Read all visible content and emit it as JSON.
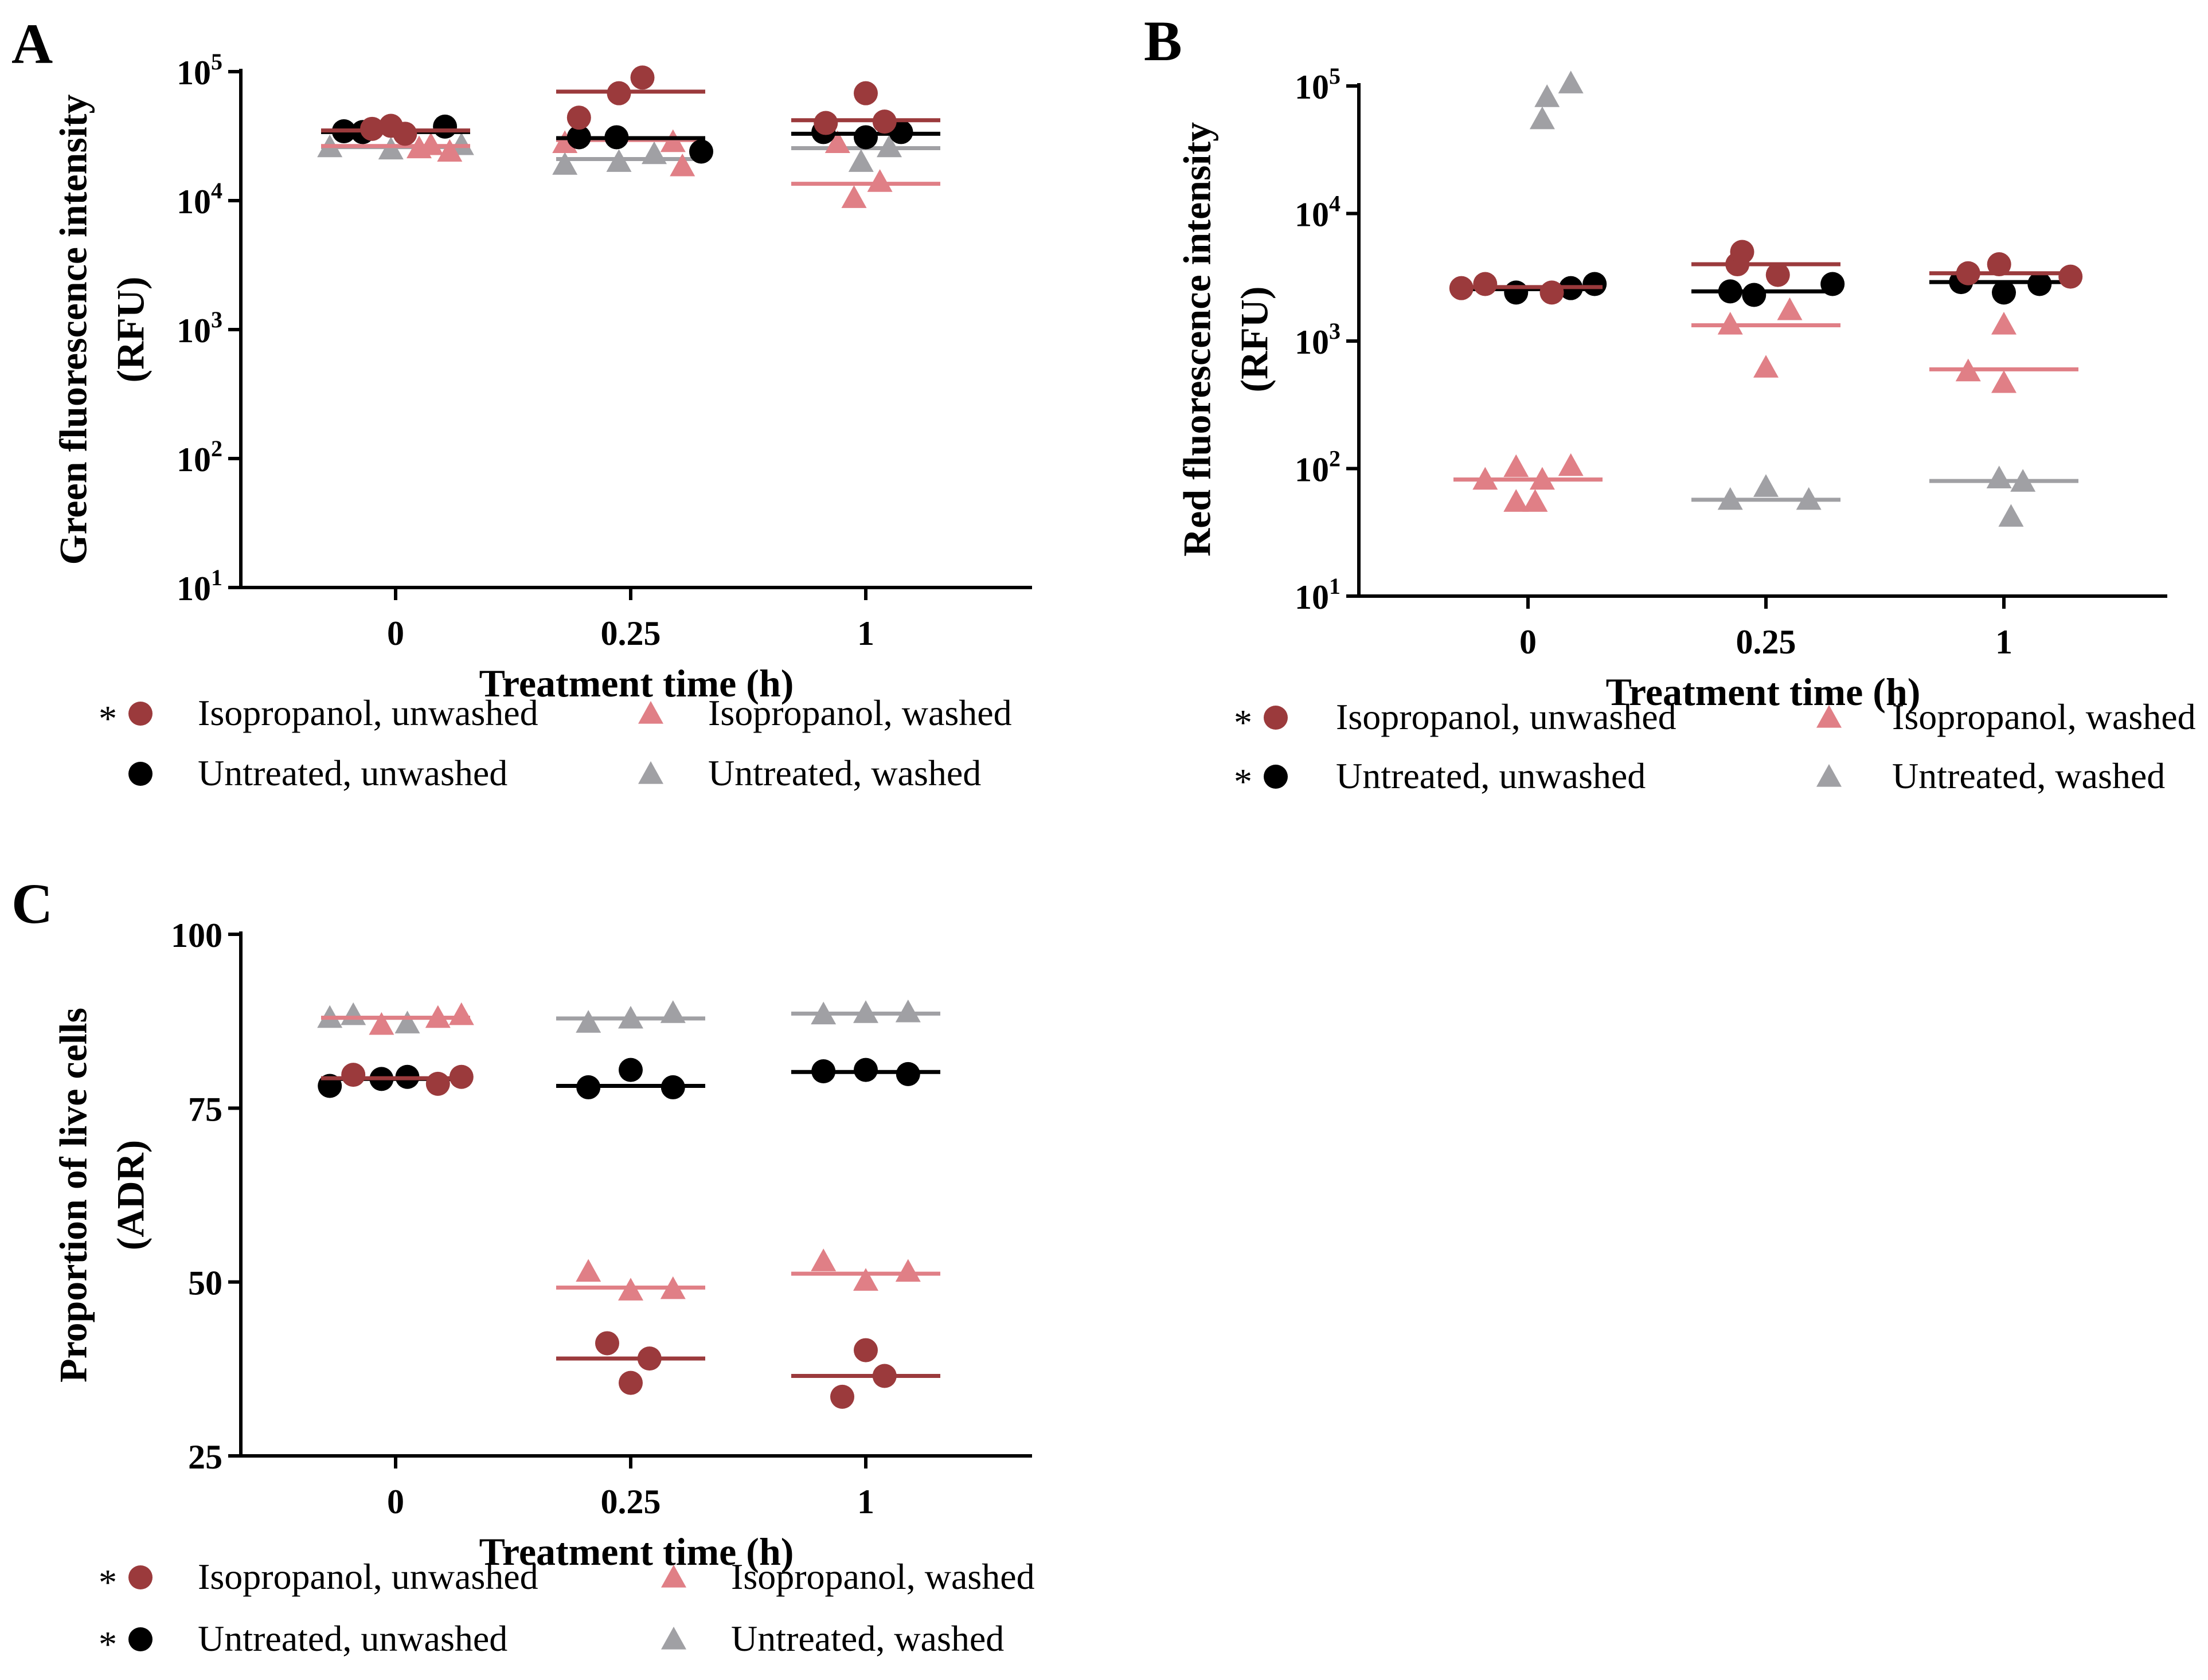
{
  "colors": {
    "iso_unwashed": "#9b3a3c",
    "iso_washed": "#e07f86",
    "untreated_unwashed": "#000000",
    "untreated_washed": "#a0a0a4",
    "axis": "#000000"
  },
  "legend_labels": {
    "iso_unwashed": "Isopropanol, unwashed",
    "iso_washed": "Isopropanol, washed",
    "untreated_unwashed": "Untreated, unwashed",
    "untreated_washed": "Untreated, washed",
    "asterisk": "*"
  },
  "chart_data": [
    {
      "panel": "A",
      "type": "scatter",
      "yscale": "log",
      "ylim": [
        10,
        100000
      ],
      "ylabel": [
        "Green fluorescence intensity",
        "(RFU)"
      ],
      "xlabel": "Treatment time (h)",
      "categories": [
        "0",
        "0.25",
        "1"
      ],
      "yticks": [
        {
          "value": 10,
          "base": "10",
          "exp": "1"
        },
        {
          "value": 100,
          "base": "10",
          "exp": "2"
        },
        {
          "value": 1000,
          "base": "10",
          "exp": "3"
        },
        {
          "value": 10000,
          "base": "10",
          "exp": "4"
        },
        {
          "value": 100000,
          "base": "10",
          "exp": "5"
        }
      ],
      "legend_stars": {
        "iso_unwashed": true,
        "untreated_unwashed": false
      },
      "series": [
        {
          "key": "untreated_washed",
          "name": "Untreated, washed",
          "marker": "triangle",
          "points": [
            [
              -0.28,
              26000
            ],
            [
              -0.02,
              25000
            ],
            [
              0.28,
              27000
            ],
            [
              0.72,
              19000
            ],
            [
              0.95,
              20000
            ],
            [
              1.1,
              23000
            ],
            [
              1.98,
              20000
            ],
            [
              2.1,
              26000
            ]
          ],
          "means": [
            26000,
            21000,
            25500
          ]
        },
        {
          "key": "iso_washed",
          "name": "Isopropanol, washed",
          "marker": "triangle",
          "points": [
            [
              0.1,
              25500
            ],
            [
              0.15,
              27000
            ],
            [
              0.23,
              24000
            ],
            [
              0.72,
              28000
            ],
            [
              1.18,
              28500
            ],
            [
              1.22,
              18500
            ],
            [
              1.88,
              28000
            ],
            [
              1.95,
              10500
            ],
            [
              2.06,
              14000
            ]
          ],
          "means": [
            26500,
            29500,
            13500
          ]
        },
        {
          "key": "untreated_unwashed",
          "name": "Untreated, unwashed",
          "marker": "circle",
          "points": [
            [
              -0.22,
              34500
            ],
            [
              -0.14,
              34000
            ],
            [
              0.21,
              37500
            ],
            [
              0.78,
              31000
            ],
            [
              0.94,
              31000
            ],
            [
              1.3,
              24000
            ],
            [
              1.82,
              34000
            ],
            [
              2.0,
              31000
            ],
            [
              2.15,
              34000
            ]
          ],
          "means": [
            34000,
            30500,
            33000
          ]
        },
        {
          "key": "iso_unwashed",
          "name": "Isopropanol, unwashed",
          "marker": "circle",
          "points": [
            [
              -0.1,
              36000
            ],
            [
              -0.02,
              38000
            ],
            [
              0.04,
              33000
            ],
            [
              0.78,
              44000
            ],
            [
              0.95,
              68000
            ],
            [
              1.05,
              90000
            ],
            [
              1.83,
              40000
            ],
            [
              2.0,
              68000
            ],
            [
              2.08,
              41000
            ]
          ],
          "means": [
            35000,
            70000,
            42000
          ]
        }
      ]
    },
    {
      "panel": "B",
      "type": "scatter",
      "yscale": "log",
      "ylim": [
        10,
        100000
      ],
      "ylabel": [
        "Red fluorescence intensity",
        "(RFU)"
      ],
      "xlabel": "Treatment time (h)",
      "categories": [
        "0",
        "0.25",
        "1"
      ],
      "yticks": [
        {
          "value": 10,
          "base": "10",
          "exp": "1"
        },
        {
          "value": 100,
          "base": "10",
          "exp": "2"
        },
        {
          "value": 1000,
          "base": "10",
          "exp": "3"
        },
        {
          "value": 10000,
          "base": "10",
          "exp": "4"
        },
        {
          "value": 100000,
          "base": "10",
          "exp": "5"
        }
      ],
      "legend_stars": {
        "iso_unwashed": true,
        "untreated_unwashed": true
      },
      "series": [
        {
          "key": "untreated_washed",
          "name": "Untreated, washed",
          "marker": "triangle",
          "points": [
            [
              0.06,
              55000
            ],
            [
              0.08,
              82000
            ],
            [
              0.18,
              105000
            ],
            [
              0.85,
              57
            ],
            [
              1.0,
              72
            ],
            [
              1.18,
              57
            ],
            [
              1.98,
              84
            ],
            [
              2.03,
              42
            ],
            [
              2.08,
              79
            ]
          ],
          "means": [
            82,
            57,
            80
          ]
        },
        {
          "key": "iso_washed",
          "name": "Isopropanol, washed",
          "marker": "triangle",
          "points": [
            [
              -0.18,
              82
            ],
            [
              -0.05,
              103
            ],
            [
              -0.05,
              55
            ],
            [
              0.06,
              82
            ],
            [
              0.18,
              105
            ],
            [
              0.03,
              55
            ],
            [
              0.85,
              1350
            ],
            [
              1.0,
              620
            ],
            [
              1.1,
              1750
            ],
            [
              1.85,
              580
            ],
            [
              2.0,
              470
            ],
            [
              2.0,
              1350
            ]
          ],
          "means": [
            82,
            1330,
            600
          ]
        },
        {
          "key": "untreated_unwashed",
          "name": "Untreated, unwashed",
          "marker": "circle",
          "points": [
            [
              -0.05,
              2400
            ],
            [
              0.18,
              2600
            ],
            [
              0.28,
              2800
            ],
            [
              0.85,
              2450
            ],
            [
              0.95,
              2300
            ],
            [
              1.28,
              2800
            ],
            [
              1.82,
              2900
            ],
            [
              2.0,
              2400
            ],
            [
              2.15,
              2800
            ]
          ],
          "means": [
            2550,
            2450,
            2900
          ]
        },
        {
          "key": "iso_unwashed",
          "name": "Isopropanol, unwashed",
          "marker": "circle",
          "points": [
            [
              -0.28,
              2600
            ],
            [
              -0.18,
              2800
            ],
            [
              0.1,
              2400
            ],
            [
              0.88,
              4000
            ],
            [
              0.9,
              5000
            ],
            [
              1.05,
              3300
            ],
            [
              1.85,
              3400
            ],
            [
              1.98,
              4000
            ],
            [
              2.28,
              3200
            ]
          ],
          "means": [
            2650,
            4000,
            3400
          ]
        }
      ]
    },
    {
      "panel": "C",
      "type": "scatter",
      "yscale": "linear",
      "ylim": [
        25,
        100
      ],
      "ylabel": [
        "Proportion of live cells",
        "(ADR)"
      ],
      "xlabel": "Treatment time (h)",
      "categories": [
        "0",
        "0.25",
        "1"
      ],
      "yticks": [
        {
          "value": 25,
          "label": "25"
        },
        {
          "value": 50,
          "label": "50"
        },
        {
          "value": 75,
          "label": "75"
        },
        {
          "value": 100,
          "label": "100"
        }
      ],
      "legend_stars": {
        "iso_unwashed": true,
        "untreated_unwashed": true
      },
      "series": [
        {
          "key": "untreated_washed",
          "name": "Untreated, washed",
          "marker": "triangle",
          "points": [
            [
              -0.28,
              88
            ],
            [
              -0.18,
              88.4
            ],
            [
              0.05,
              87.2
            ],
            [
              0.82,
              87.3
            ],
            [
              1.0,
              87.9
            ],
            [
              1.18,
              88.7
            ],
            [
              1.82,
              88.5
            ],
            [
              2.0,
              88.7
            ],
            [
              2.18,
              88.8
            ]
          ],
          "means": [
            88,
            87.9,
            88.6
          ]
        },
        {
          "key": "iso_washed",
          "name": "Isopropanol, washed",
          "marker": "triangle",
          "points": [
            [
              -0.06,
              87
            ],
            [
              0.18,
              88
            ],
            [
              0.28,
              88.4
            ],
            [
              0.82,
              51.5
            ],
            [
              1.0,
              48.8
            ],
            [
              1.18,
              49
            ]
          ],
          "means": [
            88,
            49.2,
            51.2
          ]
        },
        {
          "key": "iso_washed_t1",
          "name": "Isopropanol, washed",
          "marker": "triangle",
          "points": [
            [
              1.82,
              53
            ],
            [
              2.0,
              50.2
            ],
            [
              2.18,
              51.5
            ]
          ],
          "means": [],
          "color_key": "iso_washed"
        },
        {
          "key": "untreated_unwashed",
          "name": "Untreated, unwashed",
          "marker": "circle",
          "points": [
            [
              -0.28,
              78.2
            ],
            [
              -0.06,
              79.2
            ],
            [
              0.05,
              79.5
            ],
            [
              0.82,
              78
            ],
            [
              1.0,
              80.5
            ],
            [
              1.18,
              78
            ],
            [
              1.82,
              80.3
            ],
            [
              2.0,
              80.5
            ],
            [
              2.18,
              79.9
            ]
          ],
          "means": [
            79.2,
            78.2,
            80.2
          ]
        },
        {
          "key": "iso_unwashed",
          "name": "Isopropanol, unwashed",
          "marker": "circle",
          "points": [
            [
              -0.18,
              79.8
            ],
            [
              0.18,
              78.5
            ],
            [
              0.28,
              79.5
            ],
            [
              0.9,
              41.2
            ],
            [
              1.0,
              35.5
            ],
            [
              1.08,
              39
            ],
            [
              1.9,
              33.5
            ],
            [
              2.0,
              40.2
            ],
            [
              2.08,
              36.5
            ]
          ],
          "means": [
            79.3,
            39,
            36.5
          ]
        }
      ]
    }
  ]
}
